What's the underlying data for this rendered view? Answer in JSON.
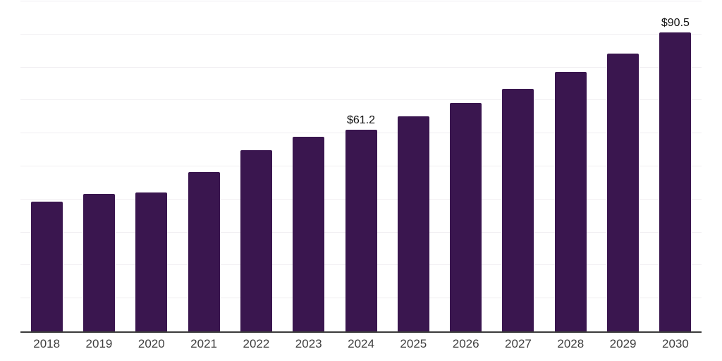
{
  "chart_data": {
    "type": "bar",
    "title": "",
    "xlabel": "",
    "ylabel": "",
    "categories": [
      "2018",
      "2019",
      "2020",
      "2021",
      "2022",
      "2023",
      "2024",
      "2025",
      "2026",
      "2027",
      "2028",
      "2029",
      "2030"
    ],
    "values": [
      39.4,
      41.7,
      42.1,
      48.2,
      55.0,
      59.0,
      61.2,
      65.1,
      69.2,
      73.5,
      78.6,
      84.2,
      90.5
    ],
    "data_labels": [
      {
        "category": "2024",
        "text": "$61.2"
      },
      {
        "category": "2030",
        "text": "$90.5"
      }
    ],
    "ylim": [
      0,
      100
    ],
    "grid_step": 10,
    "grid": true,
    "legend": false,
    "y_axis_labels_visible": false,
    "colors": {
      "bar": "#3a164f",
      "gridline": "#f0eef1",
      "axis_line": "#3b3b3b",
      "tick_label": "#3f3f3f",
      "data_label": "#111111",
      "background": "#ffffff"
    }
  }
}
